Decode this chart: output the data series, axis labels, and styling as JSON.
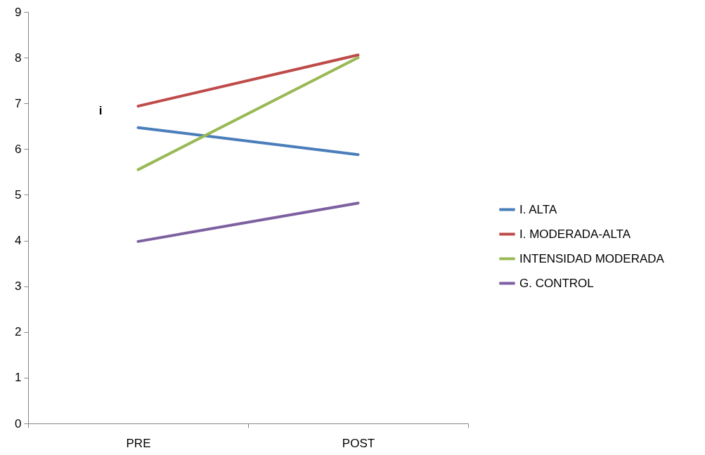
{
  "chart_data": {
    "type": "line",
    "categories": [
      "PRE",
      "POST"
    ],
    "series": [
      {
        "name": "I. ALTA",
        "color": "#4a7ebb",
        "values": [
          6.47,
          5.88
        ]
      },
      {
        "name": "I. MODERADA-ALTA",
        "color": "#be4b48",
        "values": [
          6.94,
          8.06
        ]
      },
      {
        "name": "INTENSIDAD MODERADA",
        "color": "#98b954",
        "values": [
          5.55,
          8.0
        ]
      },
      {
        "name": "G. CONTROL",
        "color": "#7d60a0",
        "values": [
          3.98,
          4.82
        ]
      }
    ],
    "ylim": [
      0,
      9
    ],
    "yticks": [
      0,
      1,
      2,
      3,
      4,
      5,
      6,
      7,
      8,
      9
    ],
    "grid": false,
    "legend": "right",
    "marker": "none",
    "line_style": "solid",
    "annotations": [
      "i"
    ]
  }
}
